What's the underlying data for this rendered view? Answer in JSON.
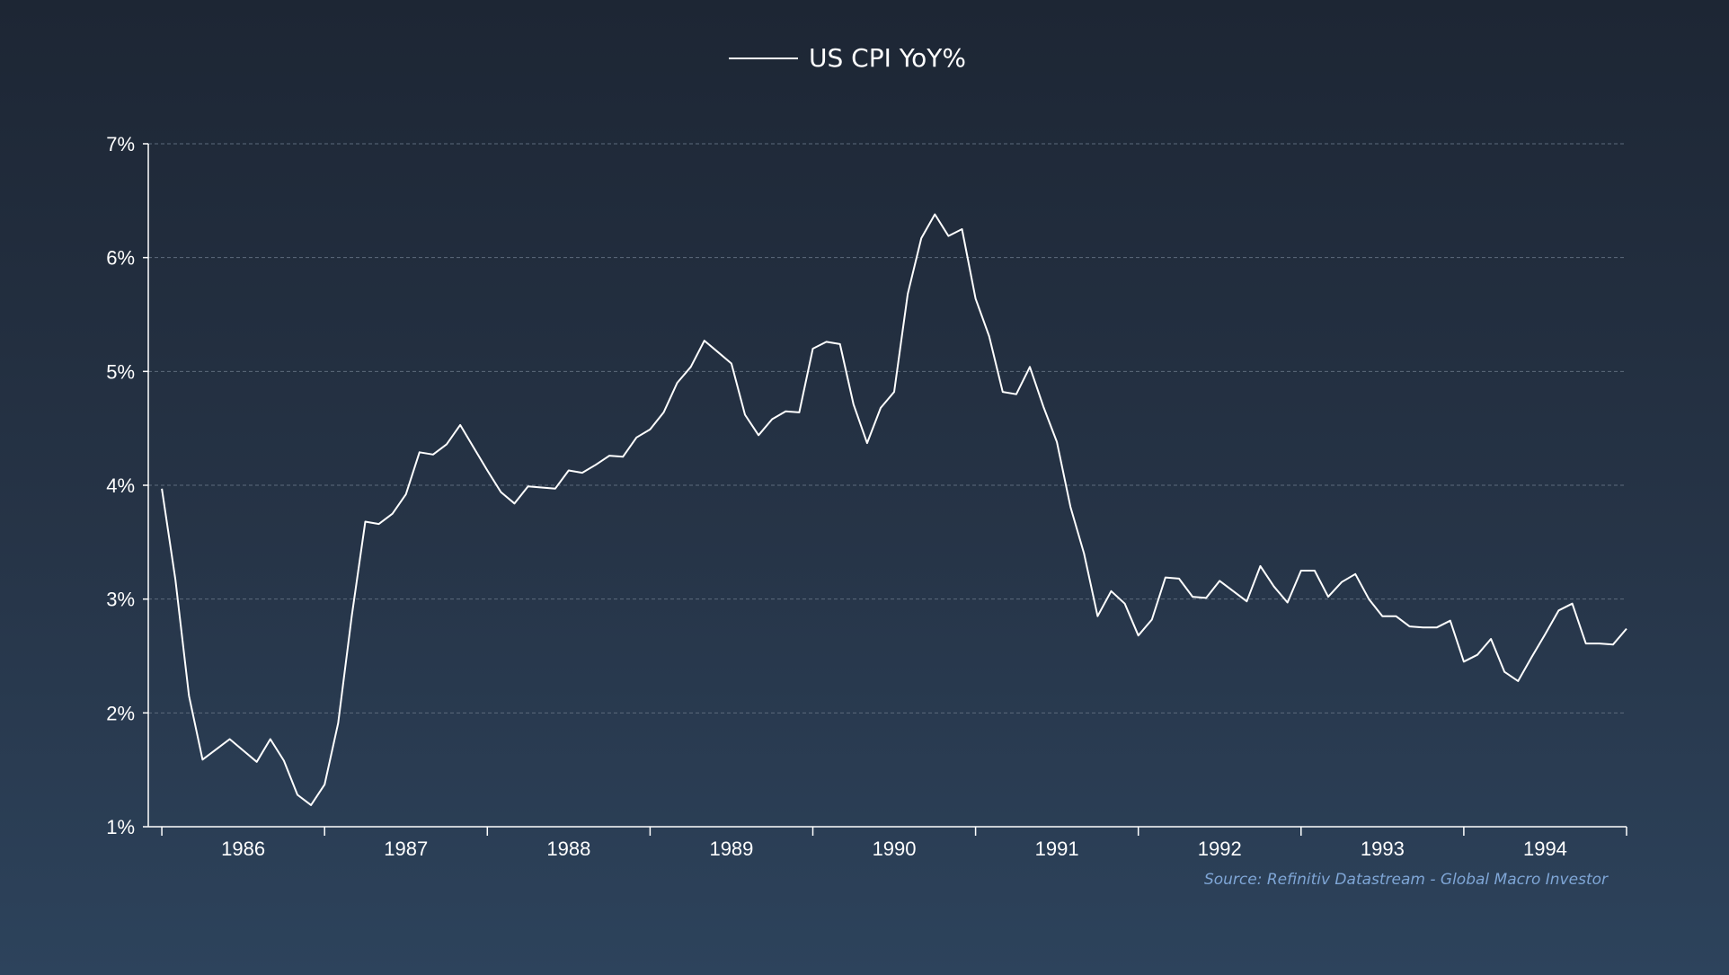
{
  "legend": {
    "label": "US CPI YoY%"
  },
  "source": "Source: Refinitiv Datastream - Global Macro Investor",
  "colors": {
    "line": "#ffffff",
    "grid": "#5d6b7c",
    "axis": "#ffffff",
    "source": "#7fa6d6"
  },
  "chart_data": {
    "type": "line",
    "title": "",
    "xlabel": "",
    "ylabel": "",
    "ylim": [
      1,
      7
    ],
    "y_ticks": [
      "1%",
      "2%",
      "3%",
      "4%",
      "5%",
      "6%",
      "7%"
    ],
    "x_tick_labels": [
      "1986",
      "1987",
      "1988",
      "1989",
      "1990",
      "1991",
      "1992",
      "1993",
      "1994"
    ],
    "x_range": [
      "1985-06",
      "1994-07"
    ],
    "grid": "horizontal dashed",
    "legend_position": "top-center",
    "series": [
      {
        "name": "US CPI YoY%",
        "x_start": "1985-07",
        "frequency": "monthly",
        "values": [
          3.97,
          3.17,
          2.15,
          1.59,
          1.68,
          1.77,
          1.67,
          1.57,
          1.77,
          1.58,
          1.28,
          1.19,
          1.37,
          1.91,
          2.85,
          3.68,
          3.66,
          3.75,
          3.92,
          4.29,
          4.27,
          4.36,
          4.53,
          4.33,
          4.13,
          3.94,
          3.84,
          3.99,
          3.98,
          3.97,
          4.13,
          4.11,
          4.18,
          4.26,
          4.25,
          4.42,
          4.49,
          4.64,
          4.9,
          5.04,
          5.27,
          5.17,
          5.07,
          4.62,
          4.44,
          4.58,
          4.65,
          4.64,
          5.2,
          5.26,
          5.24,
          4.71,
          4.37,
          4.68,
          4.82,
          5.68,
          6.17,
          6.38,
          6.19,
          6.25,
          5.64,
          5.31,
          4.82,
          4.8,
          5.04,
          4.69,
          4.38,
          3.81,
          3.4,
          2.85,
          3.07,
          2.96,
          2.68,
          2.82,
          3.19,
          3.18,
          3.02,
          3.01,
          3.16,
          3.07,
          2.98,
          3.29,
          3.11,
          2.97,
          3.25,
          3.25,
          3.02,
          3.15,
          3.22,
          3.0,
          2.85,
          2.85,
          2.76,
          2.75,
          2.75,
          2.81,
          2.45,
          2.51,
          2.65,
          2.36,
          2.28,
          2.49,
          2.69,
          2.9,
          2.96,
          2.61,
          2.61,
          2.6,
          2.74
        ]
      }
    ]
  }
}
